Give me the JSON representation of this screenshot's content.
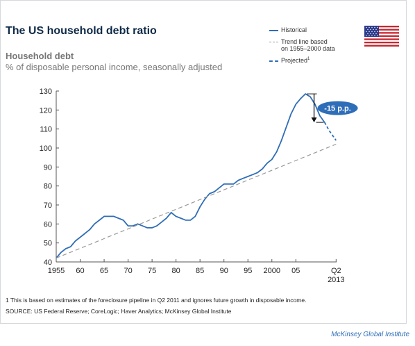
{
  "header": {
    "title": "The US household debt ratio",
    "subtitle_bold": "Household debt",
    "subtitle": "% of disposable personal income, seasonally adjusted"
  },
  "legend": {
    "historical": "Historical",
    "trend_line1": "Trend line based",
    "trend_line2": "on 1955–2000 data",
    "projected": "Projected",
    "projected_sup": "1"
  },
  "annotation": {
    "label": "-15 p.p."
  },
  "footer": {
    "footnote": "1 This is based on estimates of the foreclosure pipeline in Q2 2011 and ignores future growth in disposable income.",
    "source": "SOURCE: US Federal Reserve; CoreLogic; Haver Analytics; McKinsey Global Institute",
    "brand": "McKinsey Global Institute"
  },
  "colors": {
    "historical": "#2e6db7",
    "trend": "#999999",
    "annotation_fill": "#2e6db7",
    "title": "#0e2a47"
  },
  "chart_data": {
    "type": "line",
    "xlabel": "",
    "ylabel": "",
    "x_ticks": [
      "1955",
      "60",
      "65",
      "70",
      "75",
      "80",
      "85",
      "90",
      "95",
      "2000",
      "05"
    ],
    "x_tick_years": [
      1955,
      1960,
      1965,
      1970,
      1975,
      1980,
      1985,
      1990,
      1995,
      2000,
      2005
    ],
    "x_end_label": [
      "Q2",
      "2013"
    ],
    "y_ticks": [
      40,
      50,
      60,
      70,
      80,
      90,
      100,
      110,
      120,
      130
    ],
    "ylim": [
      40,
      130
    ],
    "xlim": [
      1955,
      2013.5
    ],
    "series": [
      {
        "name": "Historical",
        "style": "solid",
        "points": [
          [
            1955,
            42
          ],
          [
            1956,
            45
          ],
          [
            1957,
            47
          ],
          [
            1958,
            48
          ],
          [
            1959,
            51
          ],
          [
            1960,
            53
          ],
          [
            1961,
            55
          ],
          [
            1962,
            57
          ],
          [
            1963,
            60
          ],
          [
            1964,
            62
          ],
          [
            1965,
            64
          ],
          [
            1966,
            64
          ],
          [
            1967,
            64
          ],
          [
            1968,
            63
          ],
          [
            1969,
            62
          ],
          [
            1970,
            59
          ],
          [
            1971,
            59
          ],
          [
            1972,
            60
          ],
          [
            1973,
            59
          ],
          [
            1974,
            58
          ],
          [
            1975,
            58
          ],
          [
            1976,
            59
          ],
          [
            1977,
            61
          ],
          [
            1978,
            63
          ],
          [
            1979,
            66
          ],
          [
            1980,
            64
          ],
          [
            1981,
            63
          ],
          [
            1982,
            62
          ],
          [
            1983,
            62
          ],
          [
            1984,
            64
          ],
          [
            1985,
            69
          ],
          [
            1986,
            73
          ],
          [
            1987,
            76
          ],
          [
            1988,
            77
          ],
          [
            1989,
            79
          ],
          [
            1990,
            81
          ],
          [
            1991,
            81
          ],
          [
            1992,
            81
          ],
          [
            1993,
            83
          ],
          [
            1994,
            84
          ],
          [
            1995,
            85
          ],
          [
            1996,
            86
          ],
          [
            1997,
            87
          ],
          [
            1998,
            89
          ],
          [
            1999,
            92
          ],
          [
            2000,
            94
          ],
          [
            2001,
            98
          ],
          [
            2002,
            104
          ],
          [
            2003,
            111
          ],
          [
            2004,
            118
          ],
          [
            2005,
            123
          ],
          [
            2006,
            126
          ],
          [
            2007,
            128.5
          ],
          [
            2008,
            127
          ],
          [
            2009,
            123
          ],
          [
            2010,
            117
          ],
          [
            2011,
            113.5
          ]
        ]
      },
      {
        "name": "Projected",
        "style": "dashed",
        "points": [
          [
            2011,
            113.5
          ],
          [
            2012,
            109
          ],
          [
            2013.4,
            104
          ]
        ]
      },
      {
        "name": "Trend line based on 1955–2000 data",
        "style": "dashed-gray",
        "points": [
          [
            1955,
            42
          ],
          [
            2013.4,
            102
          ]
        ]
      }
    ],
    "annotations": [
      {
        "text": "-15 p.p.",
        "from": 128.5,
        "to": 113.5
      }
    ],
    "legend_position": "top-right"
  }
}
